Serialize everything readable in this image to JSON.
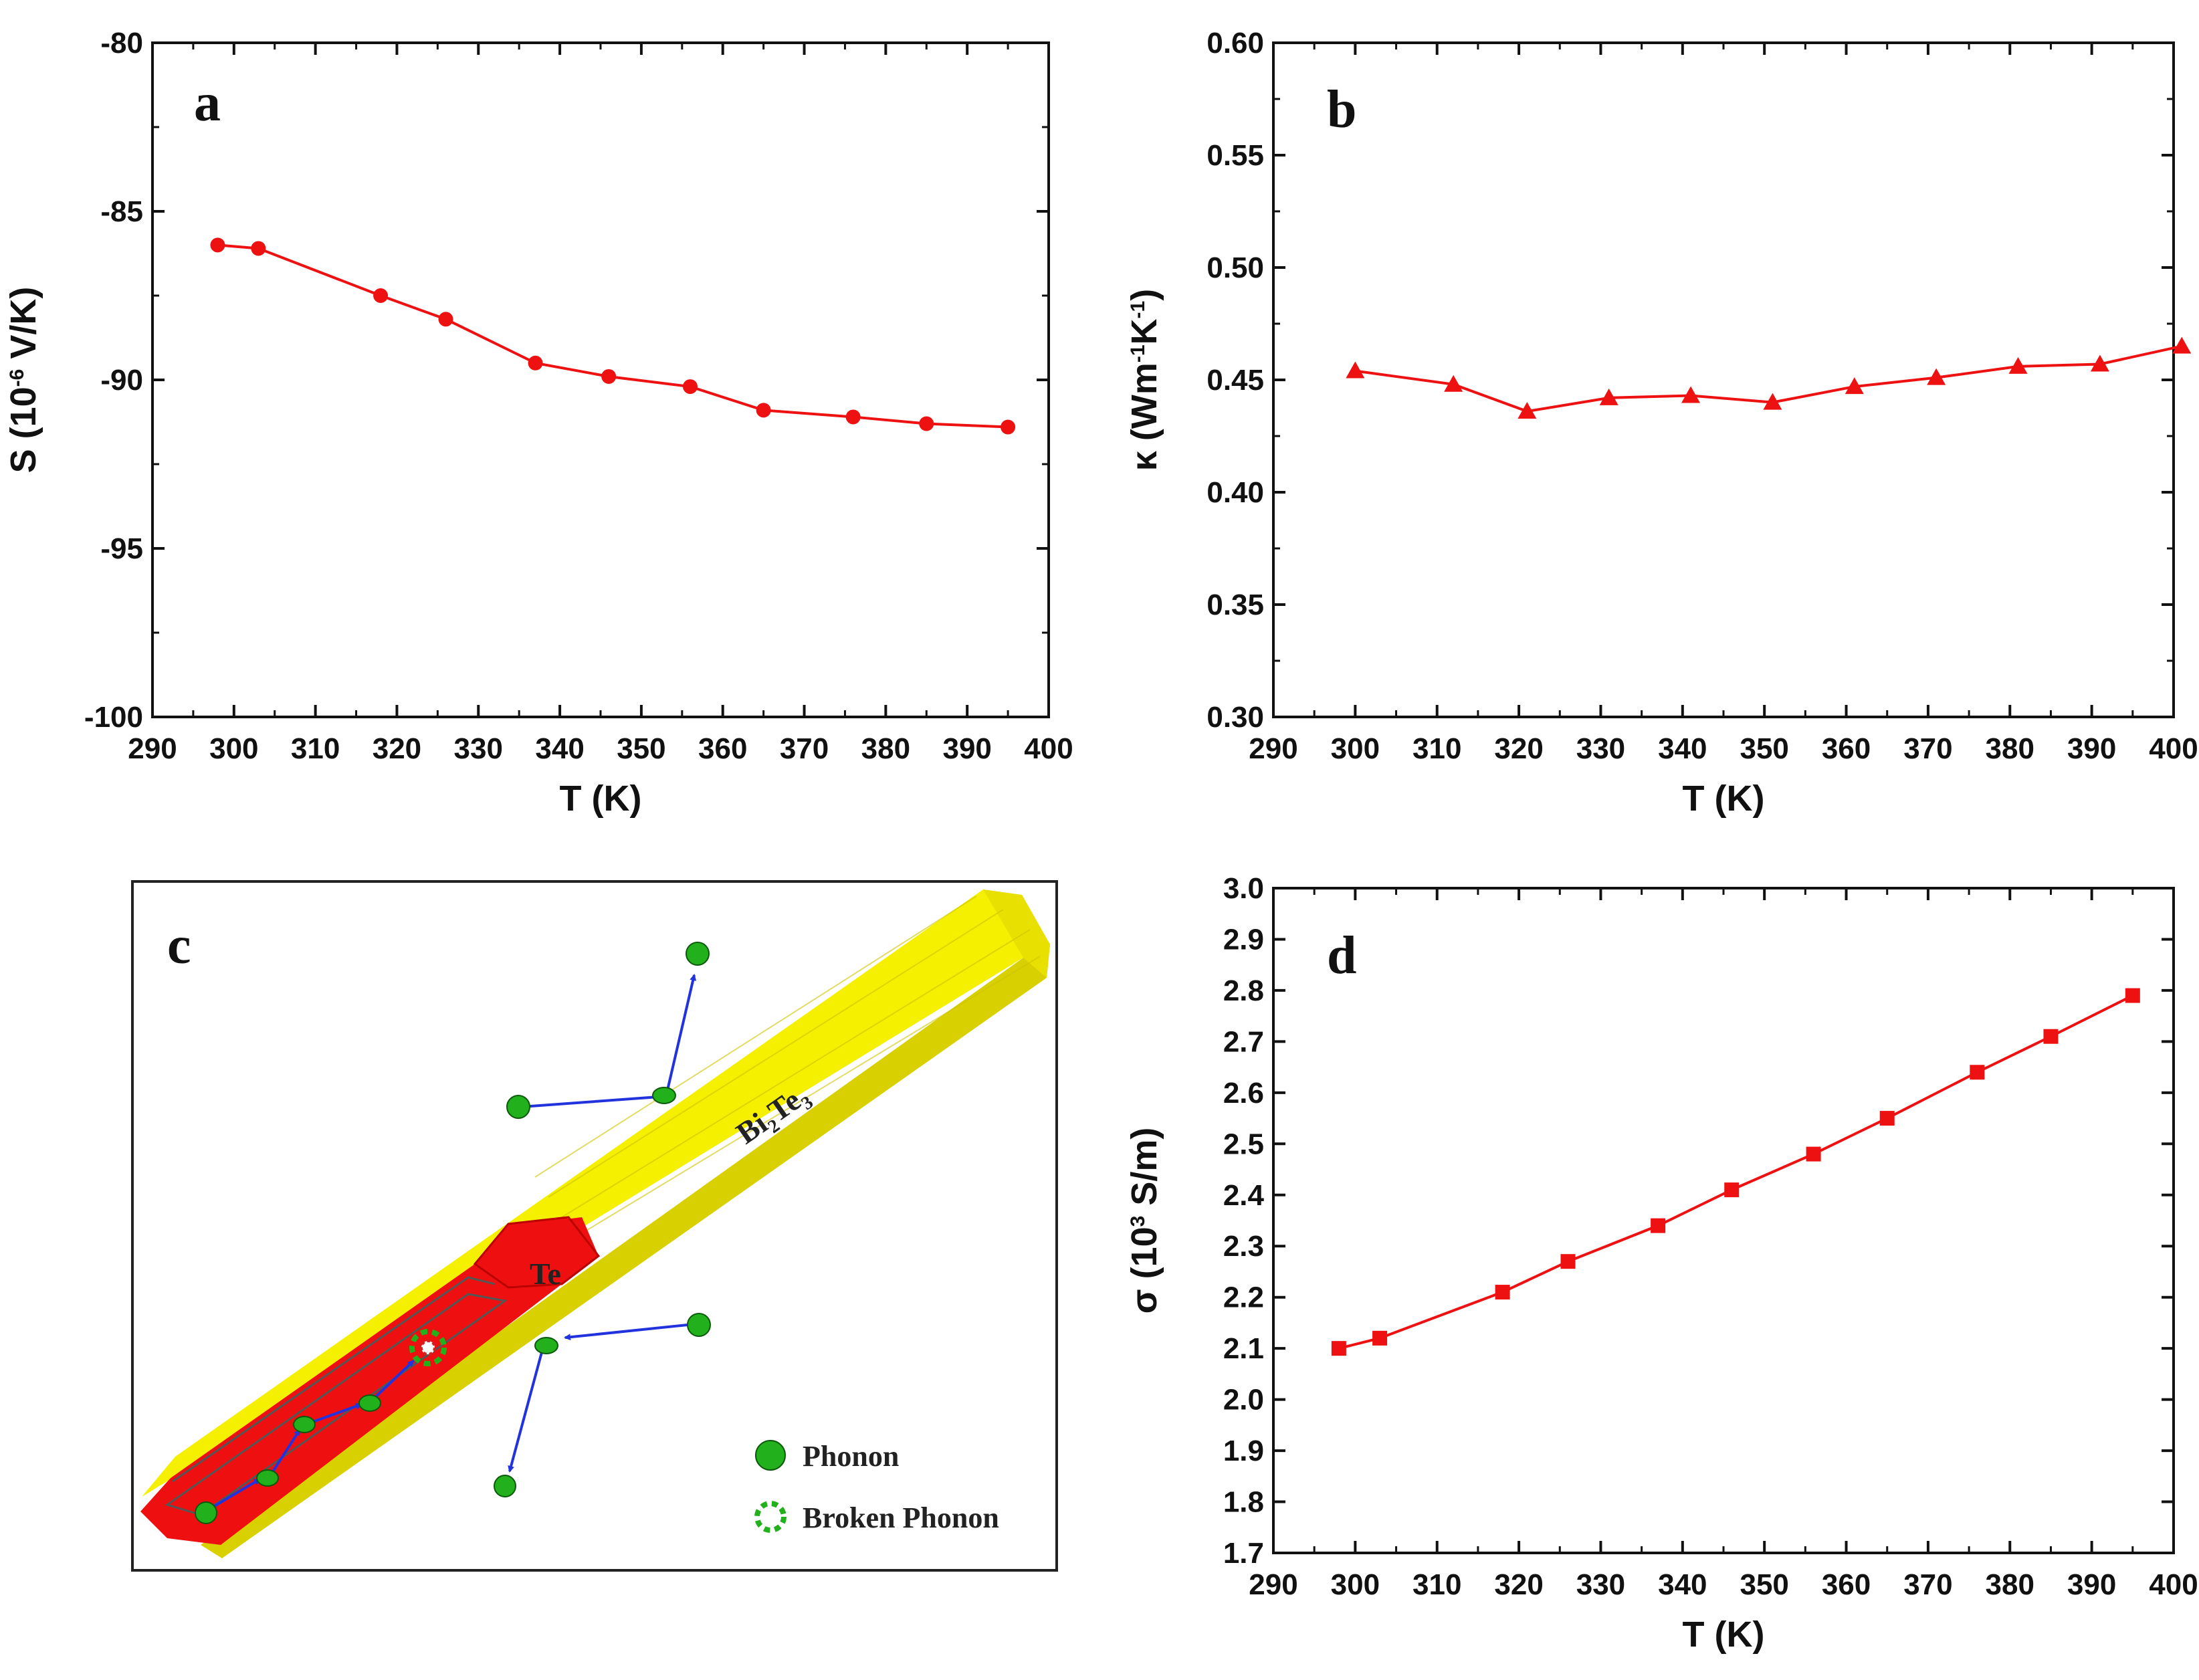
{
  "colors": {
    "series": "#ee1111",
    "axis": "#111111",
    "rod_yellow": "#f4f000",
    "rod_yellow_dark": "#c9c000",
    "rod_red": "#ee1010",
    "phonon_green": "#22b01c",
    "arrow_blue": "#2233dd"
  },
  "chart_data": [
    {
      "id": "a",
      "type": "line",
      "panel_label": "a",
      "xlabel": "T (K)",
      "ylabel_parts": [
        "S (10",
        "-6",
        " V/K)"
      ],
      "xlim": [
        290,
        400
      ],
      "ylim": [
        -100,
        -80
      ],
      "xticks": [
        290,
        300,
        310,
        320,
        330,
        340,
        350,
        360,
        370,
        380,
        390,
        400
      ],
      "yticks": [
        -100,
        -95,
        -90,
        -85,
        -80
      ],
      "ytick_labels": [
        "-100",
        "-95",
        "-90",
        "-85",
        "-80"
      ],
      "marker": "circle",
      "series": [
        {
          "name": "S",
          "x": [
            298,
            303,
            318,
            326,
            337,
            346,
            356,
            365,
            376,
            385,
            395
          ],
          "y": [
            -86.0,
            -86.1,
            -87.5,
            -88.2,
            -89.5,
            -89.9,
            -90.2,
            -90.9,
            -91.1,
            -91.3,
            -91.4
          ]
        }
      ]
    },
    {
      "id": "b",
      "type": "line",
      "panel_label": "b",
      "xlabel": "T (K)",
      "ylabel_parts": [
        "κ (Wm",
        "-1",
        "K",
        "-1",
        ")"
      ],
      "xlim": [
        290,
        400
      ],
      "ylim": [
        0.3,
        0.6
      ],
      "xticks": [
        290,
        300,
        310,
        320,
        330,
        340,
        350,
        360,
        370,
        380,
        390,
        400
      ],
      "yticks": [
        0.3,
        0.35,
        0.4,
        0.45,
        0.5,
        0.55,
        0.6
      ],
      "ytick_labels": [
        "0.30",
        "0.35",
        "0.40",
        "0.45",
        "0.50",
        "0.55",
        "0.60"
      ],
      "marker": "triangle",
      "series": [
        {
          "name": "κ",
          "x": [
            300,
            312,
            321,
            331,
            341,
            351,
            361,
            371,
            381,
            391,
            401
          ],
          "y": [
            0.454,
            0.448,
            0.436,
            0.442,
            0.443,
            0.44,
            0.447,
            0.451,
            0.456,
            0.457,
            0.465
          ]
        }
      ]
    },
    {
      "id": "d",
      "type": "line",
      "panel_label": "d",
      "xlabel": "T (K)",
      "ylabel_parts": [
        "σ (10",
        "3",
        " S/m)"
      ],
      "xlim": [
        290,
        400
      ],
      "ylim": [
        1.7,
        3.0
      ],
      "xticks": [
        290,
        300,
        310,
        320,
        330,
        340,
        350,
        360,
        370,
        380,
        390,
        400
      ],
      "yticks": [
        1.7,
        1.8,
        1.9,
        2.0,
        2.1,
        2.2,
        2.3,
        2.4,
        2.5,
        2.6,
        2.7,
        2.8,
        2.9,
        3.0
      ],
      "ytick_labels": [
        "1.7",
        "1.8",
        "1.9",
        "2.0",
        "2.1",
        "2.2",
        "2.3",
        "2.4",
        "2.5",
        "2.6",
        "2.7",
        "2.8",
        "2.9",
        "3.0"
      ],
      "marker": "square",
      "series": [
        {
          "name": "σ",
          "x": [
            298,
            303,
            318,
            326,
            337,
            346,
            356,
            365,
            376,
            385,
            395
          ],
          "y": [
            2.1,
            2.12,
            2.21,
            2.27,
            2.34,
            2.41,
            2.48,
            2.55,
            2.64,
            2.71,
            2.79
          ]
        }
      ]
    }
  ],
  "schematic": {
    "panel_label": "c",
    "rod_outer_label_main": "Bi",
    "rod_outer_label_sub1": "2",
    "rod_outer_label_mid": "Te",
    "rod_outer_label_sub2": "3",
    "rod_inner_label": "Te",
    "legend": [
      {
        "icon": "phonon-icon",
        "label": "Phonon"
      },
      {
        "icon": "broken-phonon-icon",
        "label": "Broken Phonon"
      }
    ]
  }
}
